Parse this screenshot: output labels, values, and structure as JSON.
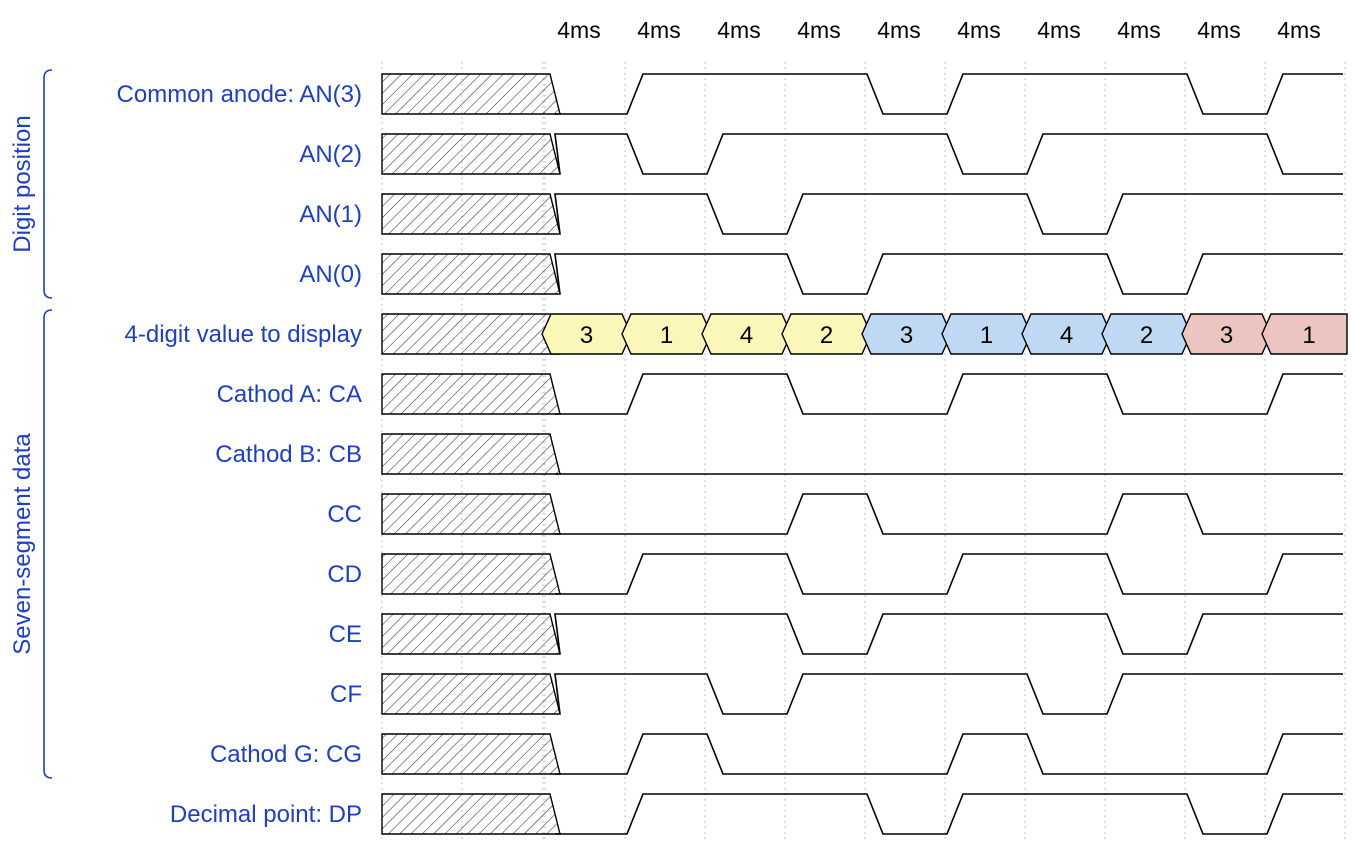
{
  "colors": {
    "label": "#1f3fbf",
    "wave": "#000000",
    "grid": "#b0b0b0",
    "hatch": "#333333",
    "bus_group_1": "#fbf7b8",
    "bus_group_2": "#bfd9f4",
    "bus_group_3": "#ecc4c0"
  },
  "top_labels": [
    "4ms",
    "4ms",
    "4ms",
    "4ms",
    "4ms",
    "4ms",
    "4ms",
    "4ms",
    "4ms",
    "4ms"
  ],
  "groups": [
    {
      "label": "Digit position",
      "first_row": 0,
      "last_row": 3
    },
    {
      "label": "Seven-segment data",
      "first_row": 4,
      "last_row": 11
    }
  ],
  "signals": [
    {
      "label": "Common anode: AN(3)",
      "type": "bit",
      "wave": [
        0,
        1,
        1,
        1,
        0,
        1,
        1,
        1,
        0,
        1
      ]
    },
    {
      "label": "AN(2)",
      "type": "bit",
      "wave": [
        1,
        0,
        1,
        1,
        1,
        0,
        1,
        1,
        1,
        0
      ]
    },
    {
      "label": "AN(1)",
      "type": "bit",
      "wave": [
        1,
        1,
        0,
        1,
        1,
        1,
        0,
        1,
        1,
        1
      ]
    },
    {
      "label": "AN(0)",
      "type": "bit",
      "wave": [
        1,
        1,
        1,
        0,
        1,
        1,
        1,
        0,
        1,
        1
      ]
    },
    {
      "label": "4-digit value to display",
      "type": "bus",
      "values": [
        "3",
        "1",
        "4",
        "2",
        "3",
        "1",
        "4",
        "2",
        "3",
        "1"
      ],
      "color_groups": [
        1,
        1,
        1,
        1,
        2,
        2,
        2,
        2,
        3,
        3
      ]
    },
    {
      "label": "Cathod A: CA",
      "type": "bit",
      "wave": [
        0,
        1,
        1,
        0,
        0,
        1,
        1,
        0,
        0,
        1
      ]
    },
    {
      "label": "Cathod B: CB",
      "type": "bit",
      "wave": [
        0,
        0,
        0,
        0,
        0,
        0,
        0,
        0,
        0,
        0
      ]
    },
    {
      "label": "CC",
      "type": "bit",
      "wave": [
        0,
        0,
        0,
        1,
        0,
        0,
        0,
        1,
        0,
        0
      ]
    },
    {
      "label": "CD",
      "type": "bit",
      "wave": [
        0,
        1,
        1,
        0,
        0,
        1,
        1,
        0,
        0,
        1
      ]
    },
    {
      "label": "CE",
      "type": "bit",
      "wave": [
        1,
        1,
        1,
        0,
        1,
        1,
        1,
        0,
        1,
        1
      ]
    },
    {
      "label": "CF",
      "type": "bit",
      "wave": [
        1,
        1,
        0,
        1,
        1,
        1,
        0,
        1,
        1,
        1
      ]
    },
    {
      "label": "Cathod G: CG",
      "type": "bit",
      "wave": [
        0,
        1,
        0,
        0,
        0,
        1,
        0,
        0,
        0,
        1
      ]
    },
    {
      "label": "Decimal point: DP",
      "type": "bit",
      "wave": [
        0,
        1,
        1,
        1,
        0,
        1,
        1,
        1,
        0,
        1
      ]
    }
  ]
}
